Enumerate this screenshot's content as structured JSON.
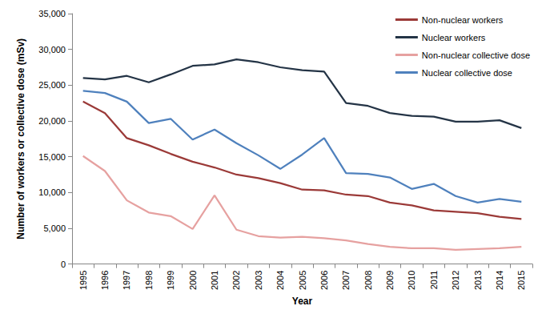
{
  "chart_data": {
    "type": "line",
    "x_label": "Year",
    "y_label": "Number of workers or collective dose (mSv)",
    "categories": [
      "1995",
      "1996",
      "1997",
      "1998",
      "1999",
      "2000",
      "2001",
      "2002",
      "2003",
      "2004",
      "2005",
      "2006",
      "2007",
      "2008",
      "2009",
      "2010",
      "2011",
      "2012",
      "2013",
      "2014",
      "2015"
    ],
    "series": [
      {
        "name": "Non-nuclear workers",
        "color": "#9b3a38",
        "values": [
          22700,
          21100,
          17600,
          16600,
          15400,
          14300,
          13500,
          12500,
          12000,
          11300,
          10400,
          10300,
          9700,
          9500,
          8600,
          8200,
          7500,
          7300,
          7100,
          6600,
          6300
        ]
      },
      {
        "name": "Nuclear workers",
        "color": "#243446",
        "values": [
          26000,
          25800,
          26300,
          25400,
          26500,
          27700,
          27900,
          28600,
          28200,
          27500,
          27100,
          26900,
          22500,
          22100,
          21100,
          20700,
          20600,
          19900,
          19900,
          20100,
          19000
        ]
      },
      {
        "name": "Non-nuclear collective dose",
        "color": "#e6a1a0",
        "values": [
          15100,
          13000,
          8900,
          7200,
          6700,
          4900,
          9600,
          4800,
          3900,
          3700,
          3800,
          3600,
          3300,
          2800,
          2400,
          2200,
          2200,
          2000,
          2100,
          2200,
          2400
        ]
      },
      {
        "name": "Nuclear collective dose",
        "color": "#4f81bd",
        "values": [
          24200,
          23900,
          22700,
          19700,
          20300,
          17400,
          18800,
          16900,
          15200,
          13300,
          15300,
          17600,
          12700,
          12600,
          12100,
          10500,
          11200,
          9500,
          8600,
          9100,
          8700
        ]
      }
    ],
    "ylim": [
      0,
      35000
    ],
    "yticks": [
      0,
      5000,
      10000,
      15000,
      20000,
      25000,
      30000,
      35000
    ],
    "grid": false,
    "legend": "top-right"
  }
}
